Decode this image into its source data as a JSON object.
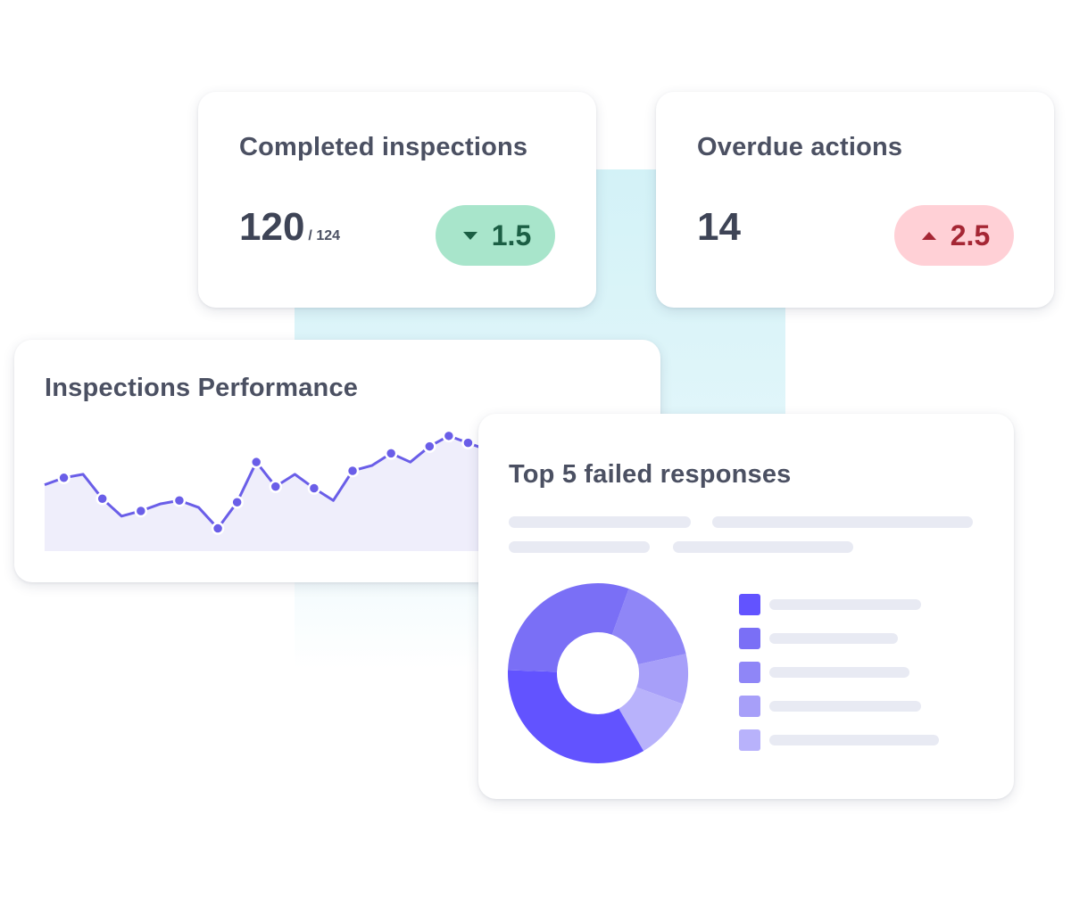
{
  "kpis": {
    "completed": {
      "title": "Completed inspections",
      "value": "120",
      "total": "/ 124",
      "change": "1.5",
      "direction": "down",
      "badge_bg": "#a8e5cb",
      "badge_fg": "#1b5e44",
      "icon": "caret-down-icon"
    },
    "overdue": {
      "title": "Overdue actions",
      "value": "14",
      "change": "2.5",
      "direction": "up",
      "badge_bg": "#ffd0d6",
      "badge_fg": "#a52634",
      "icon": "caret-up-icon"
    }
  },
  "performance": {
    "title": "Inspections Performance",
    "line_color": "#6a5ee8",
    "fill_color": "#efeefb",
    "chart_data": {
      "type": "area",
      "x": [
        0,
        1,
        2,
        3,
        4,
        5,
        6,
        7,
        8,
        9,
        10,
        11,
        12,
        13,
        14,
        15,
        16,
        17,
        18,
        19,
        20,
        21,
        22,
        23
      ],
      "y": [
        38,
        42,
        44,
        30,
        20,
        23,
        27,
        29,
        25,
        13,
        28,
        51,
        37,
        44,
        36,
        29,
        46,
        49,
        56,
        51,
        60,
        66,
        62,
        58
      ],
      "markers": [
        1,
        3,
        5,
        7,
        9,
        10,
        11,
        12,
        14,
        16,
        18,
        20,
        21,
        22
      ]
    }
  },
  "failed": {
    "title": "Top 5 failed responses",
    "chart_data": {
      "type": "pie",
      "values": [
        34,
        30,
        16,
        9,
        11
      ],
      "colors": [
        "#6253ff",
        "#7a6ff6",
        "#8f86f7",
        "#a79ff9",
        "#b8b2fb"
      ]
    },
    "legend": [
      {
        "color": "#6253ff"
      },
      {
        "color": "#7a6ff6"
      },
      {
        "color": "#8f86f7"
      },
      {
        "color": "#a79ff9"
      },
      {
        "color": "#b8b2fb"
      }
    ],
    "placeholder_color": "#e8eaf3"
  }
}
